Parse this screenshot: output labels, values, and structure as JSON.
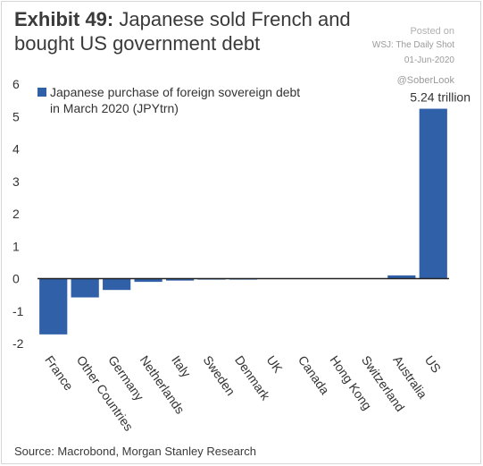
{
  "header": {
    "exhibit": "Exhibit 49:",
    "title": "Japanese sold French and bought US government debt"
  },
  "watermark": {
    "posted_on": "Posted on",
    "outlet": "WSJ: The Daily Shot",
    "date": "01-Jun-2020",
    "handle": "@SoberLook"
  },
  "footer": {
    "source": "Source: Macrobond, Morgan Stanley Research"
  },
  "chart_data": {
    "type": "bar",
    "categories": [
      "France",
      "Other Countries",
      "Germany",
      "Netherlands",
      "Italy",
      "Sweden",
      "Denmark",
      "UK",
      "Canada",
      "Hong Kong",
      "Switzerland",
      "Australia",
      "US"
    ],
    "series": [
      {
        "name": "Japanese purchase of foreign sovereign debt in March 2020 (JPYtrn)",
        "values": [
          -1.72,
          -0.58,
          -0.35,
          -0.1,
          -0.06,
          -0.03,
          -0.03,
          -0.01,
          0.0,
          0.0,
          0.0,
          0.1,
          5.24
        ]
      }
    ],
    "legend_lines": [
      "Japanese purchase of foreign sovereign debt",
      "in March 2020 (JPYtrn)"
    ],
    "annotation": "5.24 trillion",
    "ylim": [
      -2,
      6
    ],
    "yticks": [
      "-2",
      "-1",
      "0",
      "1",
      "2",
      "3",
      "4",
      "5",
      "6"
    ],
    "bar_color": "#3060a8",
    "legend_position": "top-left",
    "grid": false
  }
}
